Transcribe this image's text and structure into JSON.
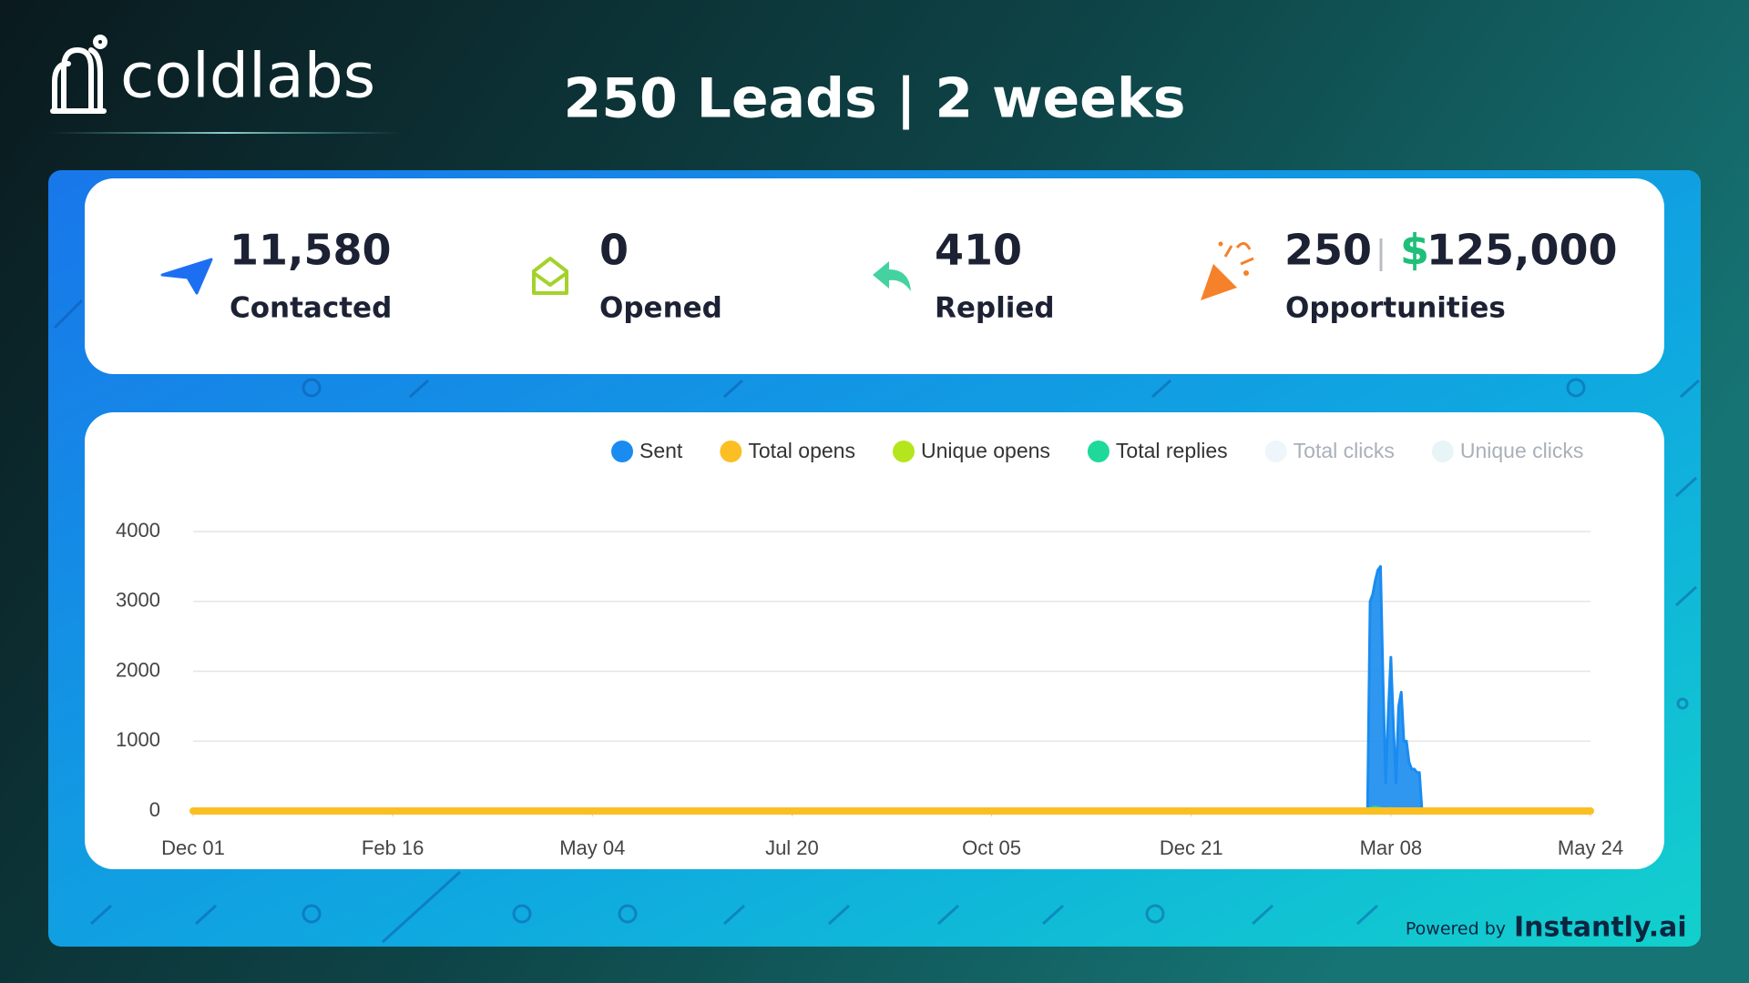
{
  "header": {
    "brand": "coldlabs",
    "headline": "250 Leads | 2 weeks"
  },
  "stats": [
    {
      "value": "11,580",
      "label": "Contacted"
    },
    {
      "value": "0",
      "label": "Opened"
    },
    {
      "value": "410",
      "label": "Replied"
    },
    {
      "value": "250",
      "currency": "$",
      "amount": "125,000",
      "label": "Opportunities"
    }
  ],
  "chart_data": {
    "type": "area",
    "x": [
      0,
      453,
      454,
      455,
      456,
      457,
      458,
      459,
      460,
      461,
      462,
      463,
      464,
      465,
      466,
      467,
      468,
      469,
      470,
      471,
      472,
      473,
      474,
      475,
      476,
      539
    ],
    "xlim": [
      0,
      539
    ],
    "xticks": [
      {
        "value": 0,
        "label": "Dec 01"
      },
      {
        "value": 77,
        "label": "Feb 16"
      },
      {
        "value": 154,
        "label": "May 04"
      },
      {
        "value": 231,
        "label": "Jul 20"
      },
      {
        "value": 308,
        "label": "Oct 05"
      },
      {
        "value": 385,
        "label": "Dec 21"
      },
      {
        "value": 462,
        "label": "Mar 08"
      },
      {
        "value": 539,
        "label": "May 24"
      }
    ],
    "ylim": [
      0,
      4000
    ],
    "yticks": [
      0,
      1000,
      2000,
      3000,
      4000
    ],
    "grid": true,
    "series": [
      {
        "name": "Sent",
        "color": "#1a8cf0",
        "values": [
          0,
          0,
          3000,
          3100,
          3300,
          3450,
          3500,
          1800,
          400,
          1400,
          2200,
          1200,
          400,
          1500,
          1700,
          1000,
          1000,
          700,
          600,
          600,
          550,
          550,
          0,
          0,
          0,
          0
        ]
      },
      {
        "name": "Total opens",
        "color": "#fbbf24",
        "values": [
          0,
          0,
          0,
          0,
          0,
          0,
          0,
          0,
          0,
          0,
          0,
          0,
          0,
          0,
          0,
          0,
          0,
          0,
          0,
          0,
          0,
          0,
          0,
          0,
          0,
          0
        ]
      },
      {
        "name": "Unique opens",
        "color": "#b5e61d",
        "values": [
          0,
          0,
          0,
          0,
          0,
          0,
          0,
          0,
          0,
          0,
          0,
          0,
          0,
          0,
          0,
          0,
          0,
          0,
          0,
          0,
          0,
          0,
          0,
          0,
          0,
          0
        ]
      },
      {
        "name": "Total replies",
        "color": "#1fd99b",
        "values": [
          0,
          0,
          40,
          50,
          60,
          50,
          40,
          30,
          20,
          30,
          40,
          30,
          20,
          30,
          30,
          20,
          20,
          10,
          10,
          10,
          10,
          10,
          0,
          0,
          0,
          0
        ]
      },
      {
        "name": "Total clicks",
        "color": "#eef6fb",
        "muted": true,
        "values": [
          0,
          0,
          0,
          0,
          0,
          0,
          0,
          0,
          0,
          0,
          0,
          0,
          0,
          0,
          0,
          0,
          0,
          0,
          0,
          0,
          0,
          0,
          0,
          0,
          0,
          0
        ]
      },
      {
        "name": "Unique clicks",
        "color": "#e7f5f7",
        "muted": true,
        "values": [
          0,
          0,
          0,
          0,
          0,
          0,
          0,
          0,
          0,
          0,
          0,
          0,
          0,
          0,
          0,
          0,
          0,
          0,
          0,
          0,
          0,
          0,
          0,
          0,
          0,
          0
        ]
      }
    ]
  },
  "footer": {
    "prefix": "Powered by",
    "brand": "Instantly.ai"
  }
}
